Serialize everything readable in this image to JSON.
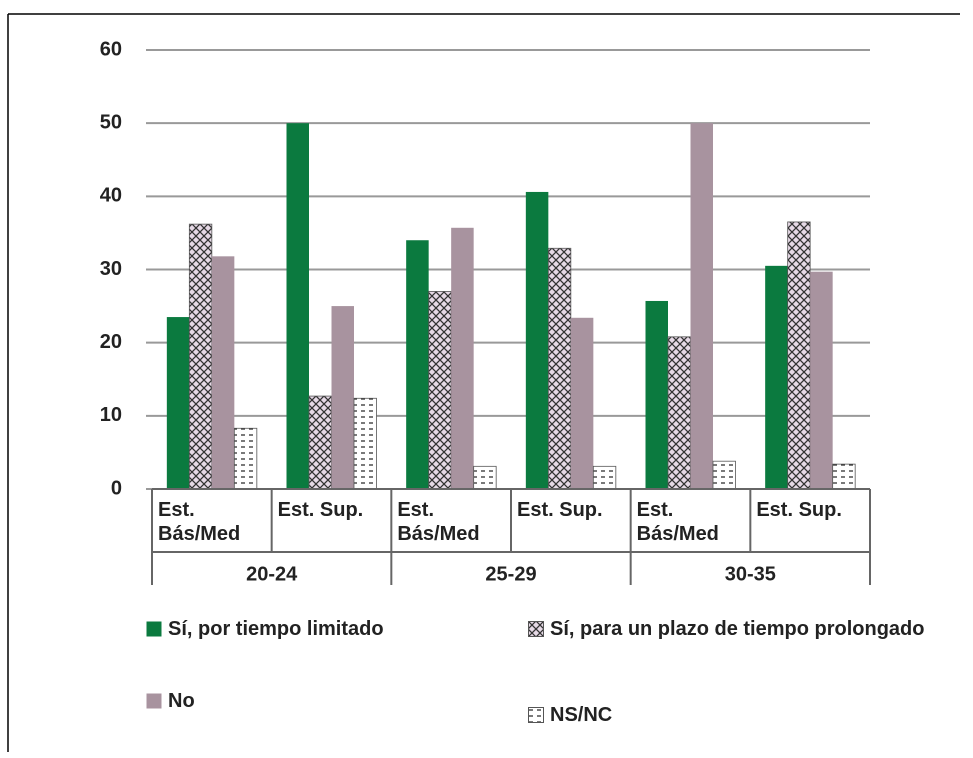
{
  "chart_data": {
    "type": "bar",
    "categories": [
      "Est. Bás/Med",
      "Est. Sup.",
      "Est. Bás/Med",
      "Est. Sup.",
      "Est. Bás/Med",
      "Est. Sup."
    ],
    "groups": [
      "20-24",
      "25-29",
      "30-35"
    ],
    "series": [
      {
        "name": "Sí, por tiempo limitado",
        "color": "#0b7a3f",
        "pattern": "solid",
        "values": [
          23.5,
          50,
          34,
          40.6,
          25.7,
          30.5
        ]
      },
      {
        "name": "Sí, para un plazo de tiempo prolongado",
        "color": "#e6d9e6",
        "pattern": "crosshatch",
        "values": [
          36.2,
          12.7,
          27,
          32.9,
          20.8,
          36.5
        ]
      },
      {
        "name": "No",
        "color": "#a8939f",
        "pattern": "solid",
        "values": [
          31.8,
          25,
          35.7,
          23.4,
          50,
          29.7
        ]
      },
      {
        "name": "NS/NC",
        "color": "#ffffff",
        "pattern": "dashes",
        "values": [
          8.3,
          12.4,
          3.1,
          3.1,
          3.8,
          3.4
        ]
      }
    ],
    "ylim": [
      0,
      60
    ],
    "yticks": [
      0,
      10,
      20,
      30,
      40,
      50,
      60
    ],
    "grid": true
  }
}
